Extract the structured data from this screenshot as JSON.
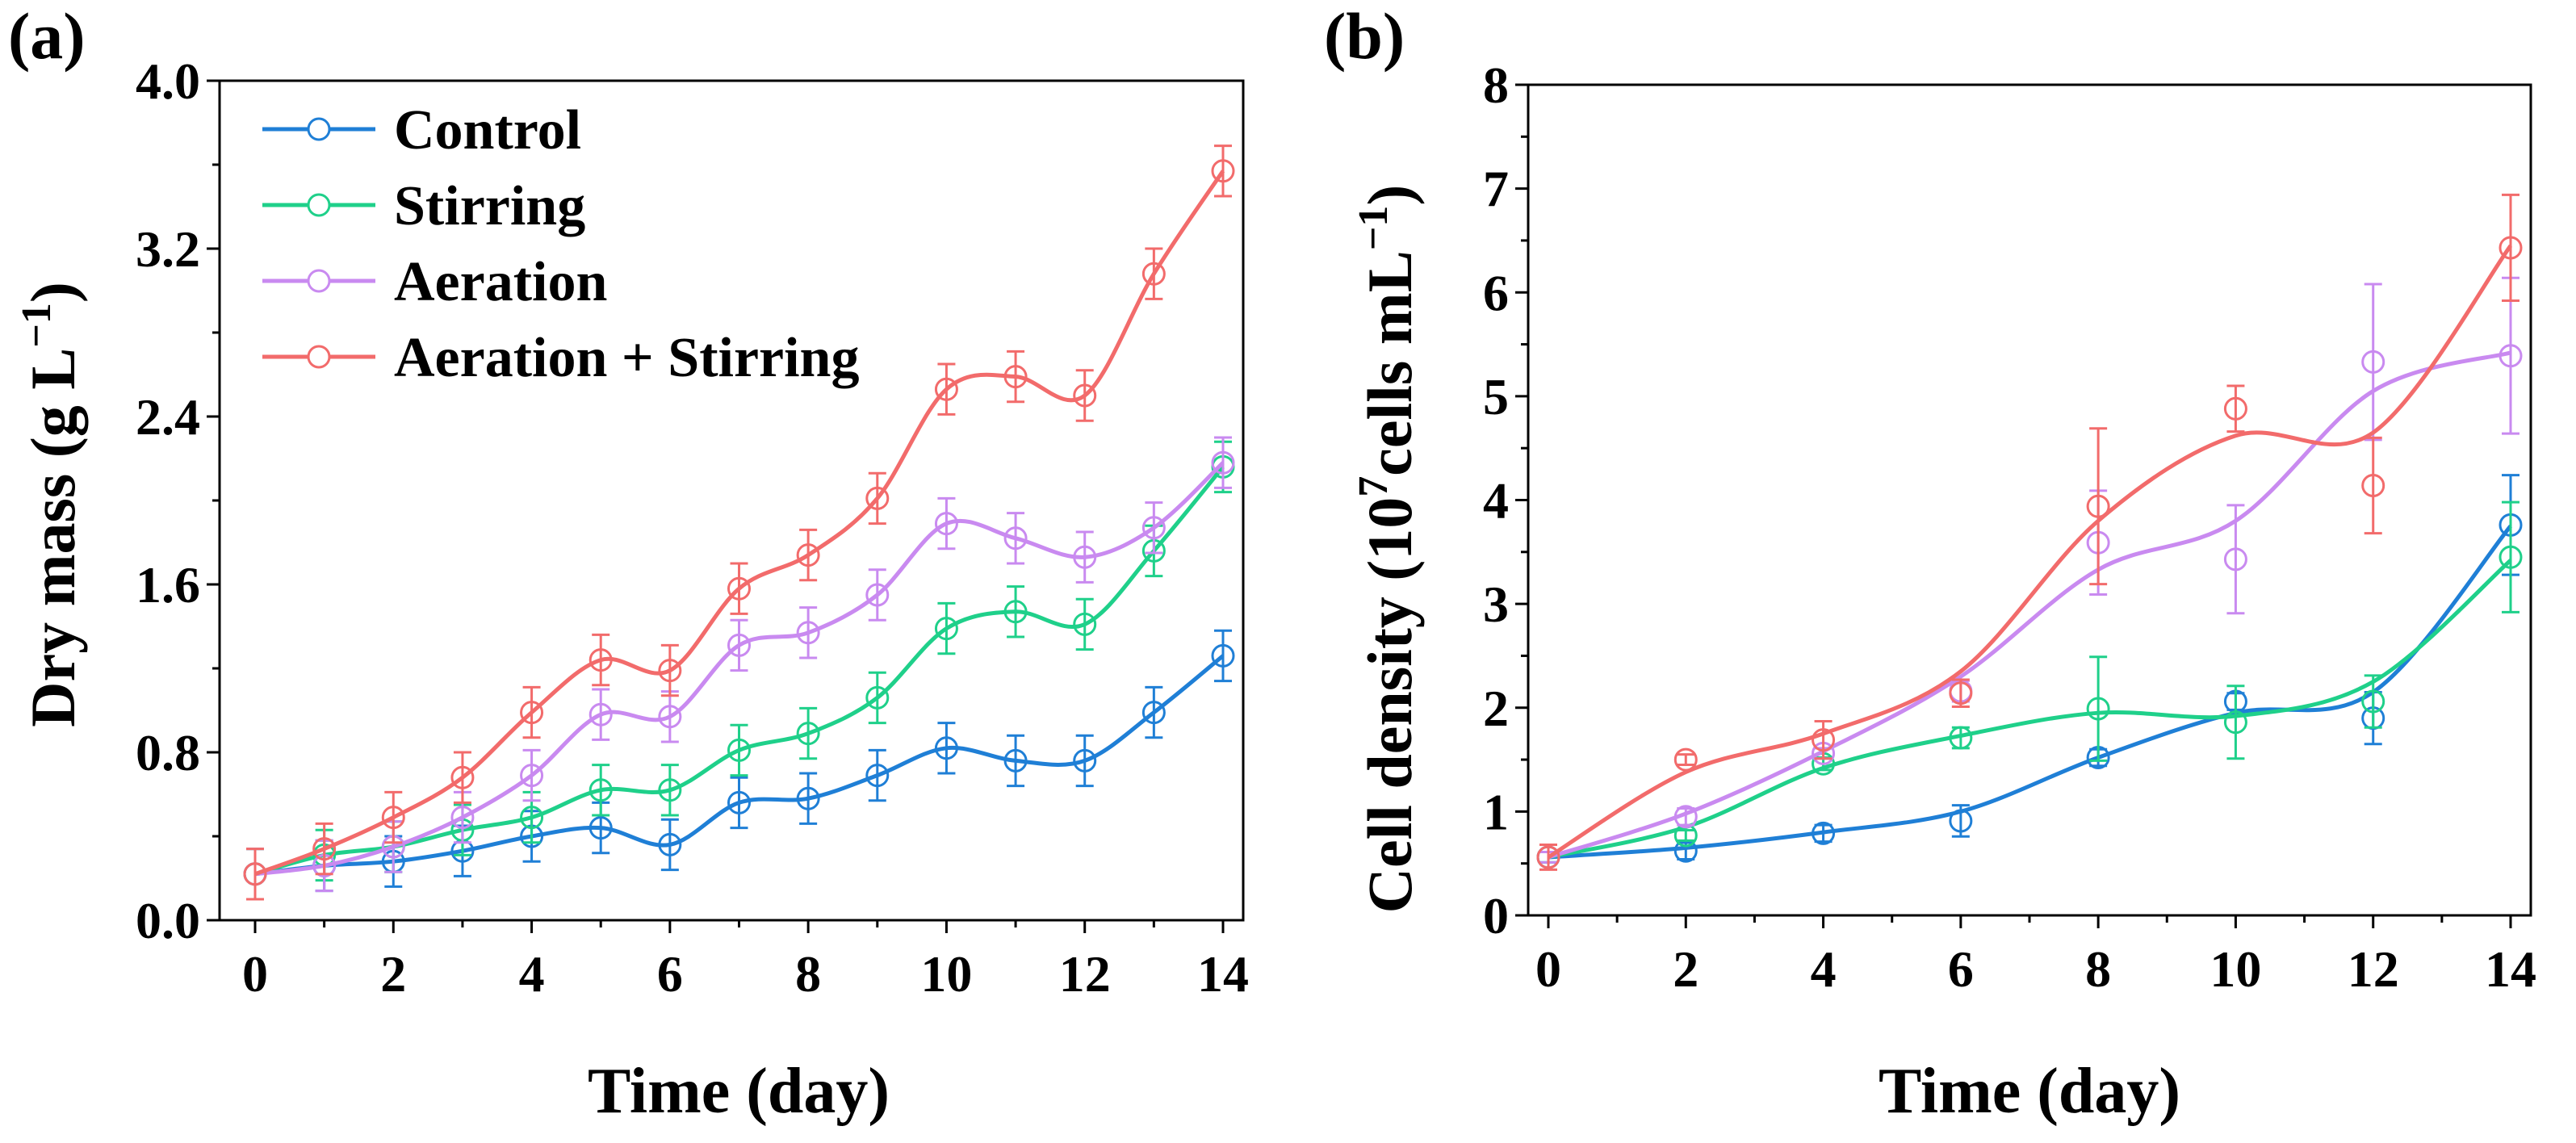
{
  "chart_data": [
    {
      "panel_label": "(a)",
      "type": "line",
      "xlabel": "Time (day)",
      "ylabel": "Dry mass (g L",
      "ylabel_sup": "−1",
      "ylabel_end": ")",
      "xlim": [
        0,
        14
      ],
      "ylim": [
        0,
        4.0
      ],
      "xticks": [
        0,
        2,
        4,
        6,
        8,
        10,
        12,
        14
      ],
      "xtick_labels": [
        "0",
        "2",
        "4",
        "6",
        "8",
        "10",
        "12",
        "14"
      ],
      "yticks": [
        0,
        0.8,
        1.6,
        2.4,
        3.2,
        4.0
      ],
      "ytick_labels": [
        "0.0",
        "0.8",
        "1.6",
        "2.4",
        "3.2",
        "4.0"
      ],
      "legend_position": "top-left",
      "x": [
        0,
        1,
        2,
        3,
        4,
        5,
        6,
        7,
        8,
        9,
        10,
        11,
        12,
        13,
        14
      ],
      "series": [
        {
          "name": "Control",
          "color": "#1f7fd6",
          "values": [
            0.22,
            0.26,
            0.28,
            0.33,
            0.4,
            0.44,
            0.36,
            0.56,
            0.58,
            0.69,
            0.82,
            0.76,
            0.76,
            0.99,
            1.26
          ]
        },
        {
          "name": "Stirring",
          "color": "#1fd08a",
          "values": [
            0.22,
            0.31,
            0.35,
            0.43,
            0.49,
            0.62,
            0.62,
            0.81,
            0.89,
            1.06,
            1.39,
            1.47,
            1.41,
            1.76,
            2.16
          ]
        },
        {
          "name": "Aeration",
          "color": "#c98af0",
          "values": [
            0.22,
            0.26,
            0.35,
            0.49,
            0.69,
            0.98,
            0.97,
            1.31,
            1.37,
            1.55,
            1.89,
            1.82,
            1.73,
            1.87,
            2.18
          ]
        },
        {
          "name": "Aeration + Stirring",
          "color": "#f26b6b",
          "values": [
            0.22,
            0.34,
            0.49,
            0.68,
            0.99,
            1.24,
            1.19,
            1.58,
            1.74,
            2.01,
            2.53,
            2.59,
            2.5,
            3.08,
            3.57
          ]
        }
      ]
    },
    {
      "panel_label": "(b)",
      "type": "line",
      "xlabel": "Time (day)",
      "ylabel": "Cell density (10",
      "ylabel_sup": "7",
      "ylabel_mid": "cells mL",
      "ylabel_sup2": "−1",
      "ylabel_end": ")",
      "xlim": [
        0,
        14
      ],
      "ylim": [
        0,
        8
      ],
      "xticks": [
        0,
        2,
        4,
        6,
        8,
        10,
        12,
        14
      ],
      "xtick_labels": [
        "0",
        "2",
        "4",
        "6",
        "8",
        "10",
        "12",
        "14"
      ],
      "yticks": [
        0,
        1,
        2,
        3,
        4,
        5,
        6,
        7,
        8
      ],
      "ytick_labels": [
        "0",
        "1",
        "2",
        "3",
        "4",
        "5",
        "6",
        "7",
        "8"
      ],
      "x": [
        0,
        2,
        4,
        6,
        8,
        10,
        12,
        14
      ],
      "series": [
        {
          "name": "Control",
          "color": "#1f7fd6",
          "values": [
            0.56,
            0.62,
            0.79,
            0.91,
            1.52,
            2.06,
            1.9,
            3.76
          ],
          "error": [
            0.05,
            0.08,
            0.08,
            0.15,
            0.08,
            0.08,
            0.25,
            0.48
          ],
          "fit": [
            0.56,
            0.65,
            0.8,
            1.0,
            1.52,
            1.95,
            2.15,
            3.75
          ]
        },
        {
          "name": "Stirring",
          "color": "#1fd08a",
          "values": [
            0.56,
            0.77,
            1.46,
            1.71,
            1.99,
            1.86,
            2.06,
            3.45
          ],
          "error": [
            0.05,
            0.05,
            0.06,
            0.1,
            0.5,
            0.35,
            0.25,
            0.53
          ],
          "fit": [
            0.56,
            0.85,
            1.42,
            1.73,
            1.95,
            1.92,
            2.25,
            3.42
          ]
        },
        {
          "name": "Aeration",
          "color": "#c98af0",
          "values": [
            0.56,
            0.95,
            1.56,
            2.16,
            3.59,
            3.43,
            5.33,
            5.39
          ],
          "error": [
            0.05,
            0.08,
            0.05,
            0.1,
            0.5,
            0.52,
            0.75,
            0.75
          ],
          "fit": [
            0.56,
            0.98,
            1.58,
            2.3,
            3.33,
            3.8,
            5.05,
            5.42
          ]
        },
        {
          "name": "Aeration + Stirring",
          "color": "#f26b6b",
          "values": [
            0.56,
            1.5,
            1.69,
            2.14,
            3.94,
            4.88,
            4.14,
            6.43
          ],
          "error": [
            0.12,
            0.05,
            0.18,
            0.13,
            0.75,
            0.22,
            0.46,
            0.51
          ],
          "fit": [
            0.56,
            1.38,
            1.75,
            2.35,
            3.8,
            4.62,
            4.65,
            6.45
          ]
        }
      ]
    }
  ]
}
